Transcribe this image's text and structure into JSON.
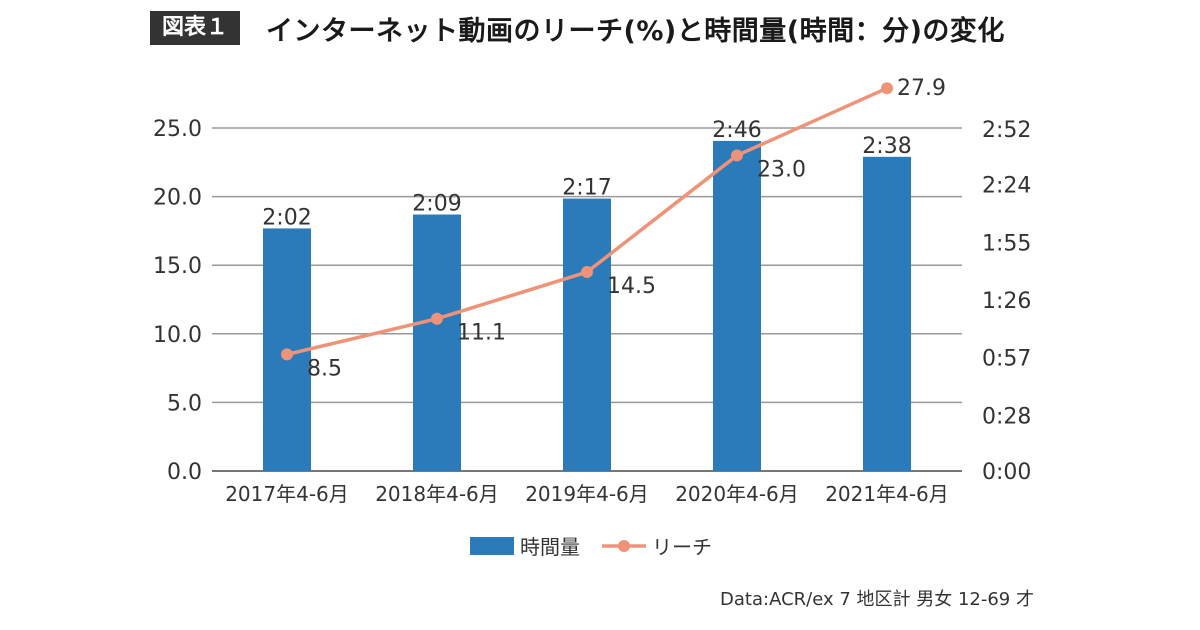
{
  "header": {
    "figure_label": "図表１",
    "title": "インターネット動画のリーチ(%)と時間量(時間：分)の変化"
  },
  "source": "Data:ACR/ex 7 地区計 男女 12-69 才",
  "chart_data": {
    "type": "bar",
    "categories": [
      "2017年4-6月",
      "2018年4-6月",
      "2019年4-6月",
      "2020年4-6月",
      "2021年4-6月"
    ],
    "left_axis": {
      "ticks": [
        "0.0",
        "5.0",
        "10.0",
        "15.0",
        "20.0",
        "25.0"
      ],
      "ylim": [
        0,
        25
      ]
    },
    "right_axis": {
      "ticks": [
        "0:00",
        "0:28",
        "0:57",
        "1:26",
        "1:55",
        "2:24",
        "2:52"
      ],
      "ylim_minutes": [
        0,
        172.5
      ]
    },
    "series": [
      {
        "name": "時間量",
        "type": "bar",
        "axis": "right",
        "color": "#2b7bba",
        "values_minutes": [
          122,
          129,
          137,
          166,
          158
        ],
        "labels": [
          "2:02",
          "2:09",
          "2:17",
          "2:46",
          "2:38"
        ]
      },
      {
        "name": "リーチ",
        "type": "line",
        "axis": "left",
        "color": "#ee9377",
        "values": [
          8.5,
          11.1,
          14.5,
          23.0,
          27.9
        ],
        "labels": [
          "8.5",
          "11.1",
          "14.5",
          "23.0",
          "27.9"
        ]
      }
    ],
    "grid": true,
    "legend_position": "bottom"
  }
}
